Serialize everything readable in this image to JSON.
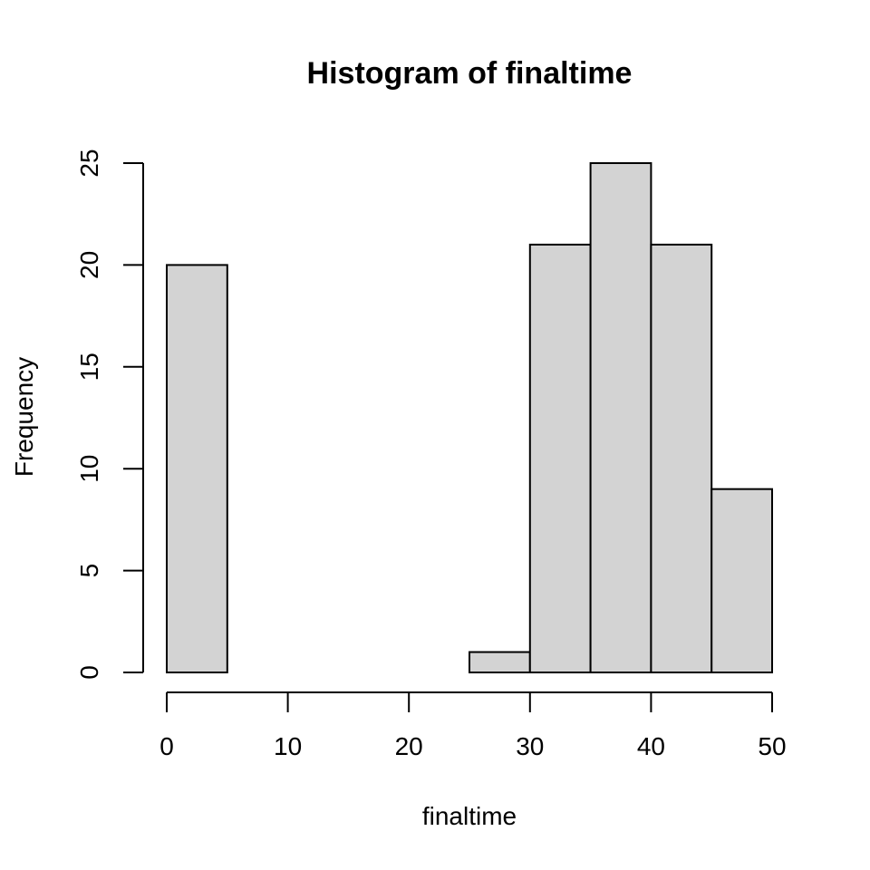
{
  "chart_data": {
    "type": "bar",
    "title": "Histogram of finaltime",
    "xlabel": "finaltime",
    "ylabel": "Frequency",
    "bins": [
      [
        0,
        5
      ],
      [
        5,
        10
      ],
      [
        10,
        15
      ],
      [
        15,
        20
      ],
      [
        20,
        25
      ],
      [
        25,
        30
      ],
      [
        30,
        35
      ],
      [
        35,
        40
      ],
      [
        40,
        45
      ],
      [
        45,
        50
      ]
    ],
    "values": [
      20,
      0,
      0,
      0,
      0,
      1,
      21,
      25,
      21,
      9
    ],
    "xlim": [
      0,
      50
    ],
    "ylim": [
      0,
      25
    ],
    "x_ticks": [
      0,
      10,
      20,
      30,
      40,
      50
    ],
    "y_ticks": [
      0,
      5,
      10,
      15,
      20,
      25
    ],
    "bar_color": "#d3d3d3",
    "edge_color": "#000000",
    "grid": false
  }
}
